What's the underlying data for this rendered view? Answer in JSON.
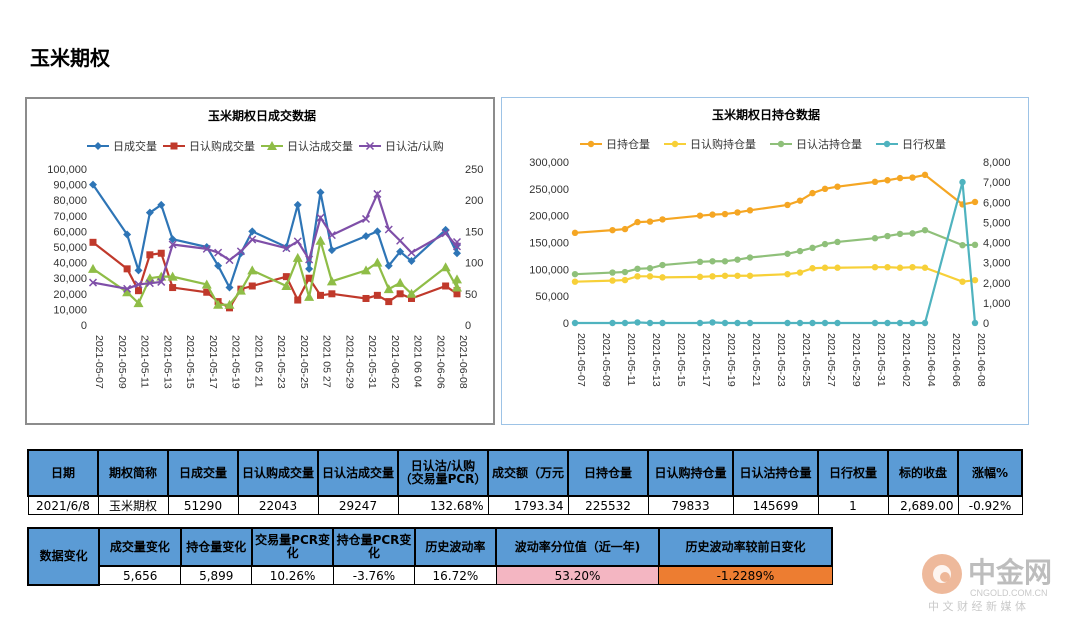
{
  "page": {
    "title": "玉米期权"
  },
  "colors": {
    "blue": "#2e75b6",
    "red": "#c0392b",
    "green": "#8fbd47",
    "purple": "#7f4fa8",
    "orange": "#f5a623",
    "yellow": "#f7d038",
    "sage": "#8fc07a",
    "teal": "#4fb3bf",
    "header_bg": "#5b9bd5",
    "pink": "#f4b6c2",
    "orange_cell": "#ed7d31"
  },
  "chart_data": [
    {
      "type": "line",
      "title": "玉米期权日成交数据",
      "x": [
        "2021-05-07",
        "2021-05-09",
        "2021-05-11",
        "2021-05-13",
        "2021-05-15",
        "2021-05-17",
        "2021-05-19",
        "2021-05-21",
        "2021-05-23",
        "2021-05-25",
        "2021-05-27",
        "2021-05-29",
        "2021-05-31",
        "2021-06-02",
        "2021-06-04",
        "2021-06-06",
        "2021-06-08"
      ],
      "x_tick_labels": [
        "2021-05-07",
        "2021-05-09",
        "2021-05-11",
        "2021-05-13",
        "2021-05-15",
        "2021-05-17",
        "2021-05-19",
        "2021 05 21",
        "2021-05-23",
        "2021-05-25",
        "2021 05 27",
        "2021-05-29",
        "2021-05-31",
        "2021-06-02",
        "2021 06 04",
        "2021-06-06",
        "2021-06-08"
      ],
      "left_ylim": [
        0,
        100000
      ],
      "left_ticks": [
        "0",
        "10,000",
        "20,000",
        "30,000",
        "40,000",
        "50,000",
        "60,000",
        "70,000",
        "80,000",
        "90,000",
        "100,000"
      ],
      "right_ylim": [
        0,
        250
      ],
      "right_ticks": [
        "0",
        "50",
        "100",
        "150",
        "200",
        "250"
      ],
      "legend_position": "top",
      "grid": false,
      "series": [
        {
          "name": "日成交量",
          "axis": "left",
          "color": "#2e75b6",
          "marker": "diamond",
          "points": [
            [
              "2021-05-07",
              90000
            ],
            [
              "2021-05-10",
              58000
            ],
            [
              "2021-05-11",
              35000
            ],
            [
              "2021-05-12",
              72000
            ],
            [
              "2021-05-13",
              77000
            ],
            [
              "2021-05-14",
              55000
            ],
            [
              "2021-05-17",
              50000
            ],
            [
              "2021-05-18",
              38000
            ],
            [
              "2021-05-19",
              24000
            ],
            [
              "2021-05-20",
              46000
            ],
            [
              "2021-05-21",
              60000
            ],
            [
              "2021-05-24",
              50000
            ],
            [
              "2021-05-25",
              77000
            ],
            [
              "2021-05-26",
              36000
            ],
            [
              "2021-05-27",
              85000
            ],
            [
              "2021-05-28",
              48000
            ],
            [
              "2021-05-31",
              57000
            ],
            [
              "2021-06-01",
              60000
            ],
            [
              "2021-06-02",
              38000
            ],
            [
              "2021-06-03",
              47000
            ],
            [
              "2021-06-04",
              41000
            ],
            [
              "2021-06-07",
              61000
            ],
            [
              "2021-06-08",
              46000
            ],
            [
              "2021-06-08",
              51290
            ]
          ]
        },
        {
          "name": "日认购成交量",
          "axis": "left",
          "color": "#c0392b",
          "marker": "square",
          "points": [
            [
              "2021-05-07",
              53000
            ],
            [
              "2021-05-10",
              36000
            ],
            [
              "2021-05-11",
              22000
            ],
            [
              "2021-05-12",
              45000
            ],
            [
              "2021-05-13",
              46000
            ],
            [
              "2021-05-14",
              24000
            ],
            [
              "2021-05-17",
              21000
            ],
            [
              "2021-05-18",
              15000
            ],
            [
              "2021-05-19",
              11000
            ],
            [
              "2021-05-20",
              23000
            ],
            [
              "2021-05-21",
              25000
            ],
            [
              "2021-05-24",
              31000
            ],
            [
              "2021-05-25",
              16000
            ],
            [
              "2021-05-26",
              30000
            ],
            [
              "2021-05-27",
              19000
            ],
            [
              "2021-05-28",
              20000
            ],
            [
              "2021-05-31",
              17000
            ],
            [
              "2021-06-01",
              19000
            ],
            [
              "2021-06-02",
              15000
            ],
            [
              "2021-06-03",
              20000
            ],
            [
              "2021-06-04",
              17000
            ],
            [
              "2021-06-07",
              25000
            ],
            [
              "2021-06-08",
              20000
            ],
            [
              "2021-06-08",
              22043
            ]
          ]
        },
        {
          "name": "日认沽成交量",
          "axis": "left",
          "color": "#8fbd47",
          "marker": "triangle",
          "points": [
            [
              "2021-05-07",
              36000
            ],
            [
              "2021-05-10",
              21000
            ],
            [
              "2021-05-11",
              14000
            ],
            [
              "2021-05-12",
              30000
            ],
            [
              "2021-05-13",
              31000
            ],
            [
              "2021-05-14",
              31000
            ],
            [
              "2021-05-17",
              26000
            ],
            [
              "2021-05-18",
              13000
            ],
            [
              "2021-05-19",
              13000
            ],
            [
              "2021-05-20",
              22000
            ],
            [
              "2021-05-21",
              35000
            ],
            [
              "2021-05-24",
              25000
            ],
            [
              "2021-05-25",
              43000
            ],
            [
              "2021-05-26",
              18000
            ],
            [
              "2021-05-27",
              54000
            ],
            [
              "2021-05-28",
              28000
            ],
            [
              "2021-05-31",
              35000
            ],
            [
              "2021-06-01",
              40000
            ],
            [
              "2021-06-02",
              23000
            ],
            [
              "2021-06-03",
              27000
            ],
            [
              "2021-06-04",
              20000
            ],
            [
              "2021-06-07",
              37000
            ],
            [
              "2021-06-08",
              24000
            ],
            [
              "2021-06-08",
              29247
            ]
          ]
        },
        {
          "name": "日认沽/认购",
          "axis": "right",
          "color": "#7f4fa8",
          "marker": "cross",
          "points": [
            [
              "2021-05-07",
              68
            ],
            [
              "2021-05-10",
              58
            ],
            [
              "2021-05-11",
              65
            ],
            [
              "2021-05-12",
              67
            ],
            [
              "2021-05-13",
              69
            ],
            [
              "2021-05-14",
              129
            ],
            [
              "2021-05-17",
              122
            ],
            [
              "2021-05-18",
              116
            ],
            [
              "2021-05-19",
              104
            ],
            [
              "2021-05-20",
              118
            ],
            [
              "2021-05-21",
              137
            ],
            [
              "2021-05-24",
              123
            ],
            [
              "2021-05-25",
              134
            ],
            [
              "2021-05-26",
              105
            ],
            [
              "2021-05-27",
              172
            ],
            [
              "2021-05-28",
              144
            ],
            [
              "2021-05-31",
              170
            ],
            [
              "2021-06-01",
              210
            ],
            [
              "2021-06-02",
              153
            ],
            [
              "2021-06-03",
              135
            ],
            [
              "2021-06-04",
              116
            ],
            [
              "2021-06-07",
              147
            ],
            [
              "2021-06-08",
              126
            ],
            [
              "2021-06-08",
              133
            ]
          ]
        }
      ]
    },
    {
      "type": "line",
      "title": "玉米期权日持仓数据",
      "x": [
        "2021-05-07",
        "2021-05-09",
        "2021-05-11",
        "2021-05-13",
        "2021-05-15",
        "2021-05-17",
        "2021-05-19",
        "2021-05-21",
        "2021-05-23",
        "2021-05-25",
        "2021-05-27",
        "2021-05-29",
        "2021-05-31",
        "2021-06-02",
        "2021-06-04",
        "2021-06-06",
        "2021-06-08"
      ],
      "left_ylim": [
        0,
        300000
      ],
      "left_ticks": [
        "0",
        "50,000",
        "100,000",
        "150,000",
        "200,000",
        "250,000",
        "300,000"
      ],
      "right_ylim": [
        0,
        8000
      ],
      "right_ticks": [
        "0",
        "1,000",
        "2,000",
        "3,000",
        "4,000",
        "5,000",
        "6,000",
        "7,000",
        "8,000"
      ],
      "legend_position": "top",
      "grid": false,
      "series": [
        {
          "name": "日持仓量",
          "axis": "left",
          "color": "#f5a623",
          "points": [
            [
              "2021-05-07",
              168000
            ],
            [
              "2021-05-10",
              173000
            ],
            [
              "2021-05-11",
              175000
            ],
            [
              "2021-05-12",
              188000
            ],
            [
              "2021-05-13",
              189000
            ],
            [
              "2021-05-14",
              193000
            ],
            [
              "2021-05-17",
              200000
            ],
            [
              "2021-05-18",
              202000
            ],
            [
              "2021-05-19",
              203000
            ],
            [
              "2021-05-20",
              206000
            ],
            [
              "2021-05-21",
              210000
            ],
            [
              "2021-05-24",
              220000
            ],
            [
              "2021-05-25",
              228000
            ],
            [
              "2021-05-26",
              242000
            ],
            [
              "2021-05-27",
              250000
            ],
            [
              "2021-05-28",
              254000
            ],
            [
              "2021-05-31",
              263000
            ],
            [
              "2021-06-01",
              266000
            ],
            [
              "2021-06-02",
              270000
            ],
            [
              "2021-06-03",
              271000
            ],
            [
              "2021-06-04",
              276000
            ],
            [
              "2021-06-07",
              221000
            ],
            [
              "2021-06-08",
              225532
            ]
          ]
        },
        {
          "name": "日认购持仓量",
          "axis": "left",
          "color": "#f7d038",
          "points": [
            [
              "2021-05-07",
              77000
            ],
            [
              "2021-05-10",
              79000
            ],
            [
              "2021-05-11",
              80000
            ],
            [
              "2021-05-12",
              87000
            ],
            [
              "2021-05-13",
              87000
            ],
            [
              "2021-05-14",
              85000
            ],
            [
              "2021-05-17",
              86000
            ],
            [
              "2021-05-18",
              87000
            ],
            [
              "2021-05-19",
              88000
            ],
            [
              "2021-05-20",
              88000
            ],
            [
              "2021-05-21",
              88000
            ],
            [
              "2021-05-24",
              91000
            ],
            [
              "2021-05-25",
              94000
            ],
            [
              "2021-05-26",
              102000
            ],
            [
              "2021-05-27",
              103000
            ],
            [
              "2021-05-28",
              103000
            ],
            [
              "2021-05-31",
              104000
            ],
            [
              "2021-06-01",
              104000
            ],
            [
              "2021-06-02",
              103000
            ],
            [
              "2021-06-03",
              104000
            ],
            [
              "2021-06-04",
              103000
            ],
            [
              "2021-06-07",
              77000
            ],
            [
              "2021-06-08",
              79833
            ]
          ]
        },
        {
          "name": "日认沽持仓量",
          "axis": "left",
          "color": "#8fc07a",
          "points": [
            [
              "2021-05-07",
              91000
            ],
            [
              "2021-05-10",
              94000
            ],
            [
              "2021-05-11",
              95000
            ],
            [
              "2021-05-12",
              101000
            ],
            [
              "2021-05-13",
              102000
            ],
            [
              "2021-05-14",
              108000
            ],
            [
              "2021-05-17",
              114000
            ],
            [
              "2021-05-18",
              115000
            ],
            [
              "2021-05-19",
              115000
            ],
            [
              "2021-05-20",
              118000
            ],
            [
              "2021-05-21",
              122000
            ],
            [
              "2021-05-24",
              129000
            ],
            [
              "2021-05-25",
              134000
            ],
            [
              "2021-05-26",
              140000
            ],
            [
              "2021-05-27",
              147000
            ],
            [
              "2021-05-28",
              151000
            ],
            [
              "2021-05-31",
              158000
            ],
            [
              "2021-06-01",
              162000
            ],
            [
              "2021-06-02",
              166000
            ],
            [
              "2021-06-03",
              167000
            ],
            [
              "2021-06-04",
              173000
            ],
            [
              "2021-06-07",
              145000
            ],
            [
              "2021-06-08",
              145699
            ]
          ]
        },
        {
          "name": "日行权量",
          "axis": "right",
          "color": "#4fb3bf",
          "points": [
            [
              "2021-05-07",
              0
            ],
            [
              "2021-05-10",
              0
            ],
            [
              "2021-05-11",
              0
            ],
            [
              "2021-05-12",
              30
            ],
            [
              "2021-05-13",
              0
            ],
            [
              "2021-05-14",
              0
            ],
            [
              "2021-05-17",
              0
            ],
            [
              "2021-05-18",
              30
            ],
            [
              "2021-05-19",
              0
            ],
            [
              "2021-05-20",
              0
            ],
            [
              "2021-05-21",
              0
            ],
            [
              "2021-05-24",
              0
            ],
            [
              "2021-05-25",
              0
            ],
            [
              "2021-05-26",
              0
            ],
            [
              "2021-05-27",
              0
            ],
            [
              "2021-05-28",
              0
            ],
            [
              "2021-05-31",
              0
            ],
            [
              "2021-06-01",
              0
            ],
            [
              "2021-06-02",
              0
            ],
            [
              "2021-06-03",
              0
            ],
            [
              "2021-06-04",
              0
            ],
            [
              "2021-06-07",
              7000
            ],
            [
              "2021-06-08",
              1
            ]
          ]
        }
      ]
    }
  ],
  "table1": {
    "headers": [
      "日期",
      "期权简称",
      "日成交量",
      "日认购成交量",
      "日认沽成交量",
      "日认沽/认购（交易量PCR）",
      "成交额（万元",
      "日持仓量",
      "日认购持仓量",
      "日认沽持仓量",
      "日行权量",
      "标的收盘",
      "涨幅%"
    ],
    "row": [
      "2021/6/8",
      "玉米期权",
      "51290",
      "22043",
      "29247",
      "132.68%",
      "1793.34",
      "225532",
      "79833",
      "145699",
      "1",
      "2,689.00",
      "-0.92%"
    ]
  },
  "table2": {
    "row_header": "数据变化",
    "headers": [
      "成交量变化",
      "持仓量变化",
      "交易量PCR变化",
      "持仓量PCR变化",
      "历史波动率",
      "波动率分位值（近一年)",
      "历史波动率较前日变化"
    ],
    "row": [
      "5,656",
      "5,899",
      "10.26%",
      "-3.76%",
      "16.72%",
      "53.20%",
      "-1.2289%"
    ]
  },
  "logo": {
    "name": "中金网",
    "url_text": "CNGOLD.COM.CN",
    "tagline": "中 文 财 经 新 媒 体"
  }
}
